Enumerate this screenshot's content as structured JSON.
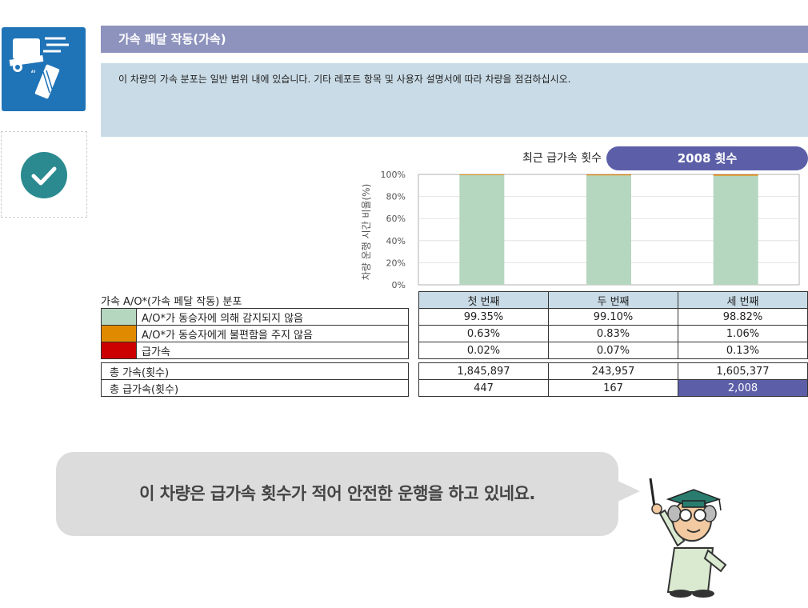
{
  "header": {
    "title": "가속 페달 작동(가속)",
    "description": "이 차량의 가속 분포는 일반 범위 내에 있습니다. 기타 레포트 항목 및 사용자 설명서에 따라 차량을 점검하십시오."
  },
  "icons": {
    "truck_icon": "truck-accelerator-icon",
    "status_icon": "checkmark-icon"
  },
  "recent": {
    "label": "최근 급가속 횟수",
    "value": "2008 횟수"
  },
  "colors": {
    "green": "#b5d6bf",
    "orange": "#e08a00",
    "red": "#cc0000",
    "accent": "#5c5fa8"
  },
  "chart_data": {
    "type": "bar",
    "ylabel": "차량 운행 시간 비율(%)",
    "yticks": [
      "0%",
      "20%",
      "40%",
      "60%",
      "80%",
      "100%"
    ],
    "ylim": [
      0,
      100
    ],
    "grid": true,
    "categories": [
      "첫 번째",
      "두 번째",
      "세 번째"
    ],
    "series": [
      {
        "values": [
          99.35,
          99.1,
          98.82
        ],
        "color": "#b5d6bf"
      },
      {
        "values": [
          0.63,
          0.83,
          1.06
        ],
        "color": "#e08a00"
      },
      {
        "values": [
          0.02,
          0.07,
          0.13
        ],
        "color": "#cc0000"
      }
    ]
  },
  "distribution": {
    "title": "가속 A/O*(가속 페달 작동) 분포",
    "columns": [
      "첫 번째",
      "두 번째",
      "세 번째"
    ],
    "rows": [
      {
        "label": "A/O*가 동승자에 의해 감지되지 않음",
        "values": [
          "99.35%",
          "99.10%",
          "98.82%"
        ]
      },
      {
        "label": "A/O*가 동승자에게 불편함을 주지 않음",
        "values": [
          "0.63%",
          "0.83%",
          "1.06%"
        ]
      },
      {
        "label": "급가속",
        "values": [
          "0.02%",
          "0.07%",
          "0.13%"
        ]
      }
    ]
  },
  "totals": {
    "rows": [
      {
        "label": "총 가속(횟수)",
        "values": [
          "1,845,897",
          "243,957",
          "1,605,377"
        ]
      },
      {
        "label": "총 급가속(횟수)",
        "values": [
          "447",
          "167",
          "2,008"
        ]
      }
    ]
  },
  "message": "이 차량은 급가속 횟수가 적어 안전한 운행을 하고 있네요."
}
